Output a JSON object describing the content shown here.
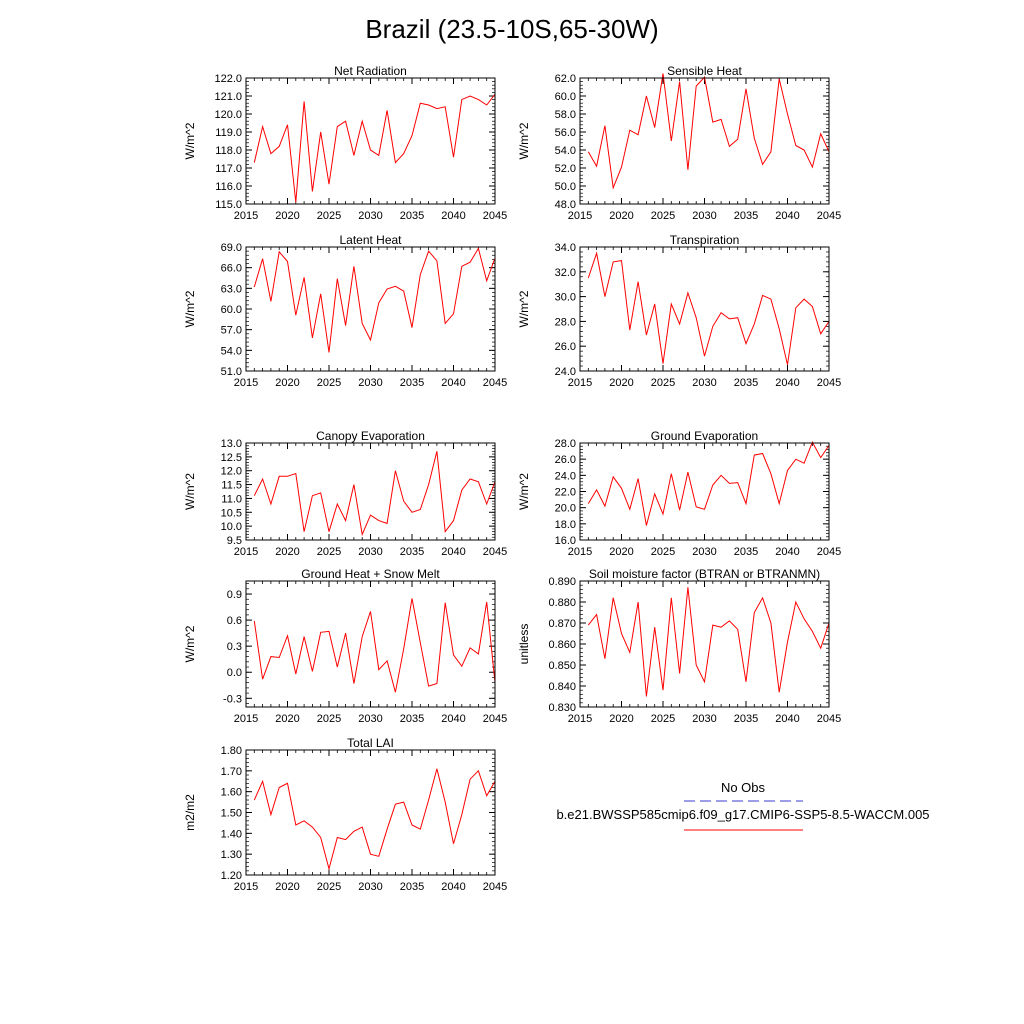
{
  "title": "Brazil (23.5-10S,65-30W)",
  "legend": {
    "obs_label": "No Obs",
    "model_label": "b.e21.BWSSP585cmip6.f09_g17.CMIP6-SSP5-8.5-WACCM.005",
    "obs_color": "#3b3bd0",
    "model_color": "#ff0000"
  },
  "chart_data": [
    {
      "type": "line",
      "title": "Net Radiation",
      "ylabel": "W/m^2",
      "xlabel": "",
      "xlim": [
        2015,
        2045
      ],
      "xticks": [
        "2015",
        "2020",
        "2025",
        "2030",
        "2035",
        "2040",
        "2045"
      ],
      "ylim": [
        115.0,
        122.0
      ],
      "yticks": [
        "115.0",
        "116.0",
        "117.0",
        "118.0",
        "119.0",
        "120.0",
        "121.0",
        "122.0"
      ],
      "x": [
        2016,
        2017,
        2018,
        2019,
        2020,
        2021,
        2022,
        2023,
        2024,
        2025,
        2026,
        2027,
        2028,
        2029,
        2030,
        2031,
        2032,
        2033,
        2034,
        2035,
        2036,
        2037,
        2038,
        2039,
        2040,
        2041,
        2042,
        2043,
        2044,
        2045
      ],
      "values": [
        117.3,
        119.3,
        117.8,
        118.2,
        119.4,
        115.1,
        120.7,
        115.7,
        119.0,
        116.1,
        119.3,
        119.6,
        117.7,
        119.6,
        118.0,
        117.7,
        120.2,
        117.3,
        117.8,
        118.8,
        120.6,
        120.5,
        120.3,
        120.4,
        117.6,
        120.8,
        121.0,
        120.8,
        120.5,
        121.1
      ]
    },
    {
      "type": "line",
      "title": "Sensible Heat",
      "ylabel": "W/m^2",
      "xlabel": "",
      "xlim": [
        2015,
        2045
      ],
      "xticks": [
        "2015",
        "2020",
        "2025",
        "2030",
        "2035",
        "2040",
        "2045"
      ],
      "ylim": [
        48.0,
        62.0
      ],
      "yticks": [
        "48.0",
        "50.0",
        "52.0",
        "54.0",
        "56.0",
        "58.0",
        "60.0",
        "62.0"
      ],
      "x": [
        2016,
        2017,
        2018,
        2019,
        2020,
        2021,
        2022,
        2023,
        2024,
        2025,
        2026,
        2027,
        2028,
        2029,
        2030,
        2031,
        2032,
        2033,
        2034,
        2035,
        2036,
        2037,
        2038,
        2039,
        2040,
        2041,
        2042,
        2043,
        2044,
        2045
      ],
      "values": [
        53.8,
        52.2,
        56.7,
        49.8,
        52.1,
        56.2,
        55.7,
        60.0,
        56.5,
        62.5,
        55.0,
        61.6,
        51.8,
        61.1,
        62.1,
        57.1,
        57.4,
        54.4,
        55.2,
        60.8,
        55.3,
        52.4,
        53.8,
        61.9,
        58.0,
        54.5,
        54.0,
        52.1,
        55.8,
        53.8
      ]
    },
    {
      "type": "line",
      "title": "Latent Heat",
      "ylabel": "W/m^2",
      "xlabel": "",
      "xlim": [
        2015,
        2045
      ],
      "xticks": [
        "2015",
        "2020",
        "2025",
        "2030",
        "2035",
        "2040",
        "2045"
      ],
      "ylim": [
        51.0,
        69.0
      ],
      "yticks": [
        "51.0",
        "54.0",
        "57.0",
        "60.0",
        "63.0",
        "66.0",
        "69.0"
      ],
      "x": [
        2016,
        2017,
        2018,
        2019,
        2020,
        2021,
        2022,
        2023,
        2024,
        2025,
        2026,
        2027,
        2028,
        2029,
        2030,
        2031,
        2032,
        2033,
        2034,
        2035,
        2036,
        2037,
        2038,
        2039,
        2040,
        2041,
        2042,
        2043,
        2044,
        2045
      ],
      "values": [
        63.2,
        67.3,
        61.1,
        68.3,
        66.9,
        59.1,
        64.6,
        55.8,
        62.2,
        53.7,
        64.4,
        57.6,
        66.2,
        57.9,
        55.5,
        60.9,
        62.9,
        63.3,
        62.6,
        57.3,
        65.0,
        68.4,
        67.0,
        57.9,
        59.3,
        66.2,
        66.8,
        68.8,
        64.1,
        67.4
      ]
    },
    {
      "type": "line",
      "title": "Transpiration",
      "ylabel": "W/m^2",
      "xlabel": "",
      "xlim": [
        2015,
        2045
      ],
      "xticks": [
        "2015",
        "2020",
        "2025",
        "2030",
        "2035",
        "2040",
        "2045"
      ],
      "ylim": [
        24.0,
        34.0
      ],
      "yticks": [
        "24.0",
        "26.0",
        "28.0",
        "30.0",
        "32.0",
        "34.0"
      ],
      "x": [
        2016,
        2017,
        2018,
        2019,
        2020,
        2021,
        2022,
        2023,
        2024,
        2025,
        2026,
        2027,
        2028,
        2029,
        2030,
        2031,
        2032,
        2033,
        2034,
        2035,
        2036,
        2037,
        2038,
        2039,
        2040,
        2041,
        2042,
        2043,
        2044,
        2045
      ],
      "values": [
        31.5,
        33.5,
        30.0,
        32.8,
        32.9,
        27.3,
        31.2,
        26.9,
        29.4,
        24.6,
        29.4,
        27.8,
        30.3,
        28.3,
        25.2,
        27.6,
        28.7,
        28.2,
        28.3,
        26.2,
        27.8,
        30.1,
        29.8,
        27.4,
        24.5,
        29.1,
        29.8,
        29.2,
        27.0,
        28.0
      ]
    },
    {
      "type": "line",
      "title": "Canopy Evaporation",
      "ylabel": "W/m^2",
      "xlabel": "",
      "xlim": [
        2015,
        2045
      ],
      "xticks": [
        "2015",
        "2020",
        "2025",
        "2030",
        "2035",
        "2040",
        "2045"
      ],
      "ylim": [
        9.5,
        13.0
      ],
      "yticks": [
        "9.5",
        "10.0",
        "10.5",
        "11.0",
        "11.5",
        "12.0",
        "12.5",
        "13.0"
      ],
      "x": [
        2016,
        2017,
        2018,
        2019,
        2020,
        2021,
        2022,
        2023,
        2024,
        2025,
        2026,
        2027,
        2028,
        2029,
        2030,
        2031,
        2032,
        2033,
        2034,
        2035,
        2036,
        2037,
        2038,
        2039,
        2040,
        2041,
        2042,
        2043,
        2044,
        2045
      ],
      "values": [
        11.1,
        11.7,
        10.8,
        11.8,
        11.8,
        11.9,
        9.8,
        11.1,
        11.2,
        9.8,
        10.8,
        10.2,
        11.5,
        9.7,
        10.4,
        10.2,
        10.1,
        12.0,
        10.9,
        10.5,
        10.6,
        11.5,
        12.7,
        9.8,
        10.2,
        11.3,
        11.7,
        11.6,
        10.8,
        11.6
      ]
    },
    {
      "type": "line",
      "title": "Ground Evaporation",
      "ylabel": "W/m^2",
      "xlabel": "",
      "xlim": [
        2015,
        2045
      ],
      "xticks": [
        "2015",
        "2020",
        "2025",
        "2030",
        "2035",
        "2040",
        "2045"
      ],
      "ylim": [
        16.0,
        28.0
      ],
      "yticks": [
        "16.0",
        "18.0",
        "20.0",
        "22.0",
        "24.0",
        "26.0",
        "28.0"
      ],
      "x": [
        2016,
        2017,
        2018,
        2019,
        2020,
        2021,
        2022,
        2023,
        2024,
        2025,
        2026,
        2027,
        2028,
        2029,
        2030,
        2031,
        2032,
        2033,
        2034,
        2035,
        2036,
        2037,
        2038,
        2039,
        2040,
        2041,
        2042,
        2043,
        2044,
        2045
      ],
      "values": [
        20.5,
        22.2,
        20.2,
        23.8,
        22.4,
        19.8,
        23.6,
        17.8,
        21.7,
        19.2,
        24.2,
        19.7,
        24.4,
        20.1,
        19.8,
        22.8,
        24.0,
        23.0,
        23.1,
        20.5,
        26.5,
        26.7,
        24.2,
        20.5,
        24.6,
        26.0,
        25.5,
        28.1,
        26.2,
        27.7
      ]
    },
    {
      "type": "line",
      "title": "Ground Heat + Snow Melt",
      "ylabel": "W/m^2",
      "xlabel": "",
      "xlim": [
        2015,
        2045
      ],
      "xticks": [
        "2015",
        "2020",
        "2025",
        "2030",
        "2035",
        "2040",
        "2045"
      ],
      "ylim": [
        -0.4,
        1.05
      ],
      "yticks": [
        "-0.3",
        "0.0",
        "0.3",
        "0.6",
        "0.9"
      ],
      "x": [
        2016,
        2017,
        2018,
        2019,
        2020,
        2021,
        2022,
        2023,
        2024,
        2025,
        2026,
        2027,
        2028,
        2029,
        2030,
        2031,
        2032,
        2033,
        2034,
        2035,
        2036,
        2037,
        2038,
        2039,
        2040,
        2041,
        2042,
        2043,
        2044,
        2045
      ],
      "values": [
        0.59,
        -0.08,
        0.18,
        0.17,
        0.42,
        -0.02,
        0.41,
        0.01,
        0.46,
        0.47,
        0.06,
        0.45,
        -0.13,
        0.41,
        0.7,
        0.03,
        0.13,
        -0.23,
        0.27,
        0.85,
        0.34,
        -0.16,
        -0.13,
        0.8,
        0.2,
        0.07,
        0.28,
        0.21,
        0.81,
        -0.12
      ]
    },
    {
      "type": "line",
      "title": "Soil moisture factor (BTRAN or BTRANMN)",
      "ylabel": "unitless",
      "xlabel": "",
      "xlim": [
        2015,
        2045
      ],
      "xticks": [
        "2015",
        "2020",
        "2025",
        "2030",
        "2035",
        "2040",
        "2045"
      ],
      "ylim": [
        0.83,
        0.89
      ],
      "yticks": [
        "0.830",
        "0.840",
        "0.850",
        "0.860",
        "0.870",
        "0.880",
        "0.890"
      ],
      "x": [
        2016,
        2017,
        2018,
        2019,
        2020,
        2021,
        2022,
        2023,
        2024,
        2025,
        2026,
        2027,
        2028,
        2029,
        2030,
        2031,
        2032,
        2033,
        2034,
        2035,
        2036,
        2037,
        2038,
        2039,
        2040,
        2041,
        2042,
        2043,
        2044,
        2045
      ],
      "values": [
        0.869,
        0.874,
        0.853,
        0.882,
        0.865,
        0.856,
        0.88,
        0.835,
        0.868,
        0.838,
        0.882,
        0.846,
        0.887,
        0.85,
        0.842,
        0.869,
        0.868,
        0.871,
        0.867,
        0.842,
        0.875,
        0.882,
        0.87,
        0.837,
        0.861,
        0.88,
        0.872,
        0.866,
        0.858,
        0.87
      ]
    },
    {
      "type": "line",
      "title": "Total LAI",
      "ylabel": "m2/m2",
      "xlabel": "",
      "xlim": [
        2015,
        2045
      ],
      "xticks": [
        "2015",
        "2020",
        "2025",
        "2030",
        "2035",
        "2040",
        "2045"
      ],
      "ylim": [
        1.2,
        1.8
      ],
      "yticks": [
        "1.20",
        "1.30",
        "1.40",
        "1.50",
        "1.60",
        "1.70",
        "1.80"
      ],
      "x": [
        2016,
        2017,
        2018,
        2019,
        2020,
        2021,
        2022,
        2023,
        2024,
        2025,
        2026,
        2027,
        2028,
        2029,
        2030,
        2031,
        2032,
        2033,
        2034,
        2035,
        2036,
        2037,
        2038,
        2039,
        2040,
        2041,
        2042,
        2043,
        2044,
        2045
      ],
      "values": [
        1.56,
        1.65,
        1.49,
        1.62,
        1.64,
        1.44,
        1.46,
        1.43,
        1.38,
        1.23,
        1.38,
        1.37,
        1.41,
        1.43,
        1.3,
        1.29,
        1.42,
        1.54,
        1.55,
        1.44,
        1.42,
        1.56,
        1.71,
        1.55,
        1.35,
        1.49,
        1.66,
        1.7,
        1.58,
        1.65
      ]
    }
  ]
}
